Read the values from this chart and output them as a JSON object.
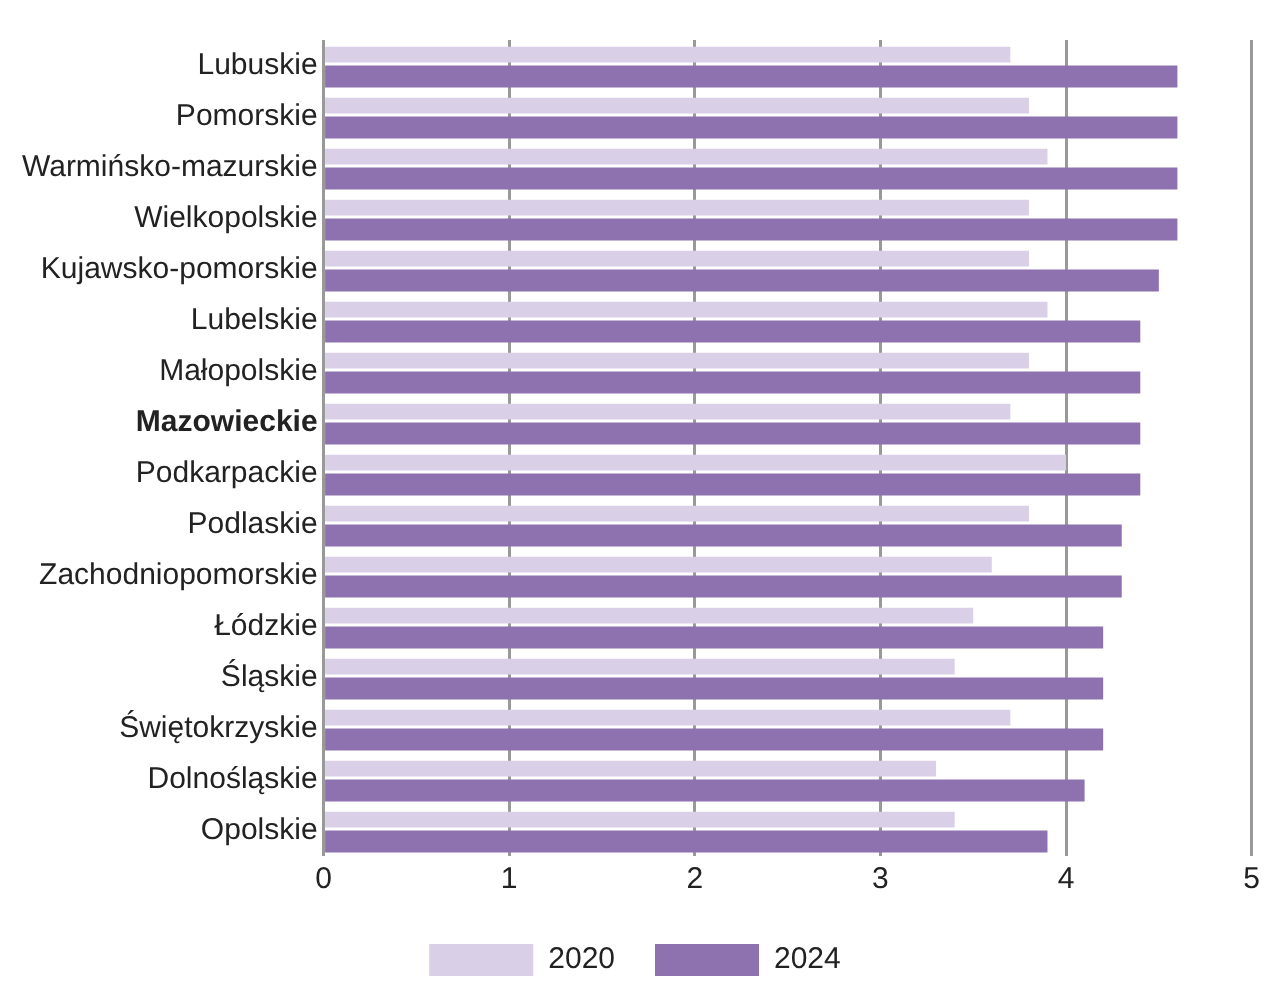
{
  "chart_data": {
    "type": "bar",
    "orientation": "horizontal",
    "categories": [
      "Lubuskie",
      "Pomorskie",
      "Warmińsko-mazurskie",
      "Wielkopolskie",
      "Kujawsko-pomorskie",
      "Lubelskie",
      "Małopolskie",
      "Mazowieckie",
      "Podkarpackie",
      "Podlaskie",
      "Zachodniopomorskie",
      "Łódzkie",
      "Śląskie",
      "Świętokrzyskie",
      "Dolnośląskie",
      "Opolskie"
    ],
    "series": [
      {
        "name": "2020",
        "color": "#d9cfe7",
        "values": [
          3.7,
          3.8,
          3.9,
          3.8,
          3.8,
          3.9,
          3.8,
          3.7,
          4.0,
          3.8,
          3.6,
          3.5,
          3.4,
          3.7,
          3.3,
          3.4
        ]
      },
      {
        "name": "2024",
        "color": "#8e72b0",
        "values": [
          4.6,
          4.6,
          4.6,
          4.6,
          4.5,
          4.4,
          4.4,
          4.4,
          4.4,
          4.3,
          4.3,
          4.2,
          4.2,
          4.2,
          4.1,
          3.9
        ]
      }
    ],
    "xlim": [
      0,
      5
    ],
    "xticks": [
      0,
      1,
      2,
      3,
      4,
      5
    ],
    "grid": "x",
    "legend": "bottom"
  }
}
